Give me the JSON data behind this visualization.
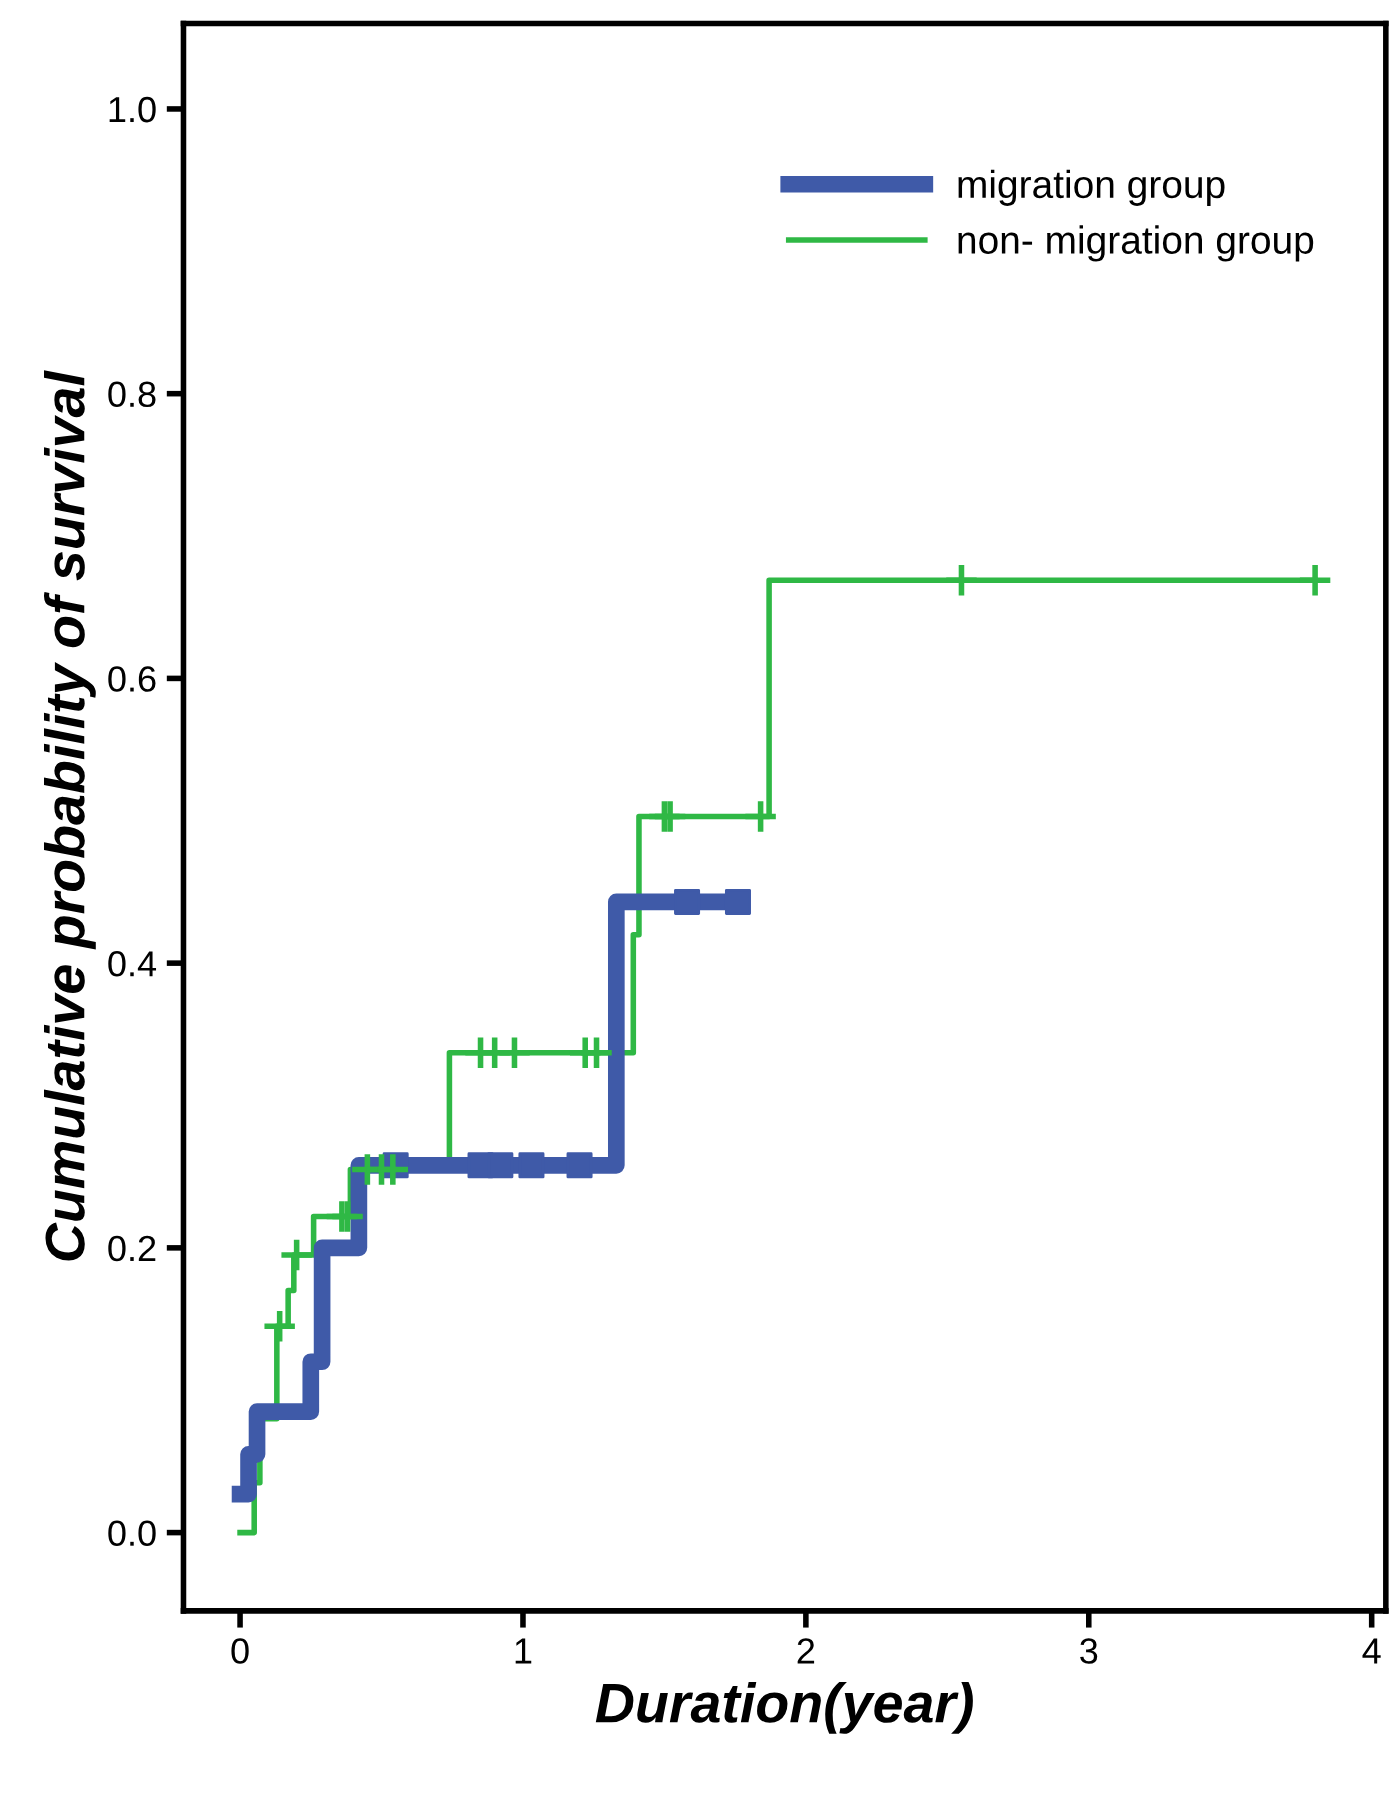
{
  "chart_data": {
    "type": "step",
    "xlabel": "Duration(year)",
    "ylabel": "Cumulative probability of survival",
    "xlim": [
      -0.2,
      4.05
    ],
    "ylim": [
      -0.055,
      1.06
    ],
    "xticks": [
      0,
      1,
      2,
      3,
      4
    ],
    "yticks": [
      {
        "value": 0,
        "label": "0.0"
      },
      {
        "value": 0.2,
        "label": "0.2"
      },
      {
        "value": 0.4,
        "label": "0.4"
      },
      {
        "value": 0.6,
        "label": "0.6"
      },
      {
        "value": 0.8,
        "label": "0.8"
      },
      {
        "value": 1,
        "label": "1.0"
      }
    ],
    "legend": "top right",
    "grid": false,
    "marker": "none",
    "series": [
      {
        "name": "migration group",
        "color": "#3f5aa8",
        "x": [
          0,
          0.03,
          0.06,
          0.25,
          0.29,
          0.42,
          1.33,
          1.77
        ],
        "values": [
          0.027,
          0.055,
          0.085,
          0.12,
          0.2,
          0.258,
          0.443,
          0.443
        ]
      },
      {
        "name": "non- migration group",
        "color": "#2fb845",
        "x": [
          0,
          0.05,
          0.07,
          0.13,
          0.17,
          0.19,
          0.26,
          0.39,
          0.74,
          1.39,
          1.41,
          1.87,
          3.8
        ],
        "values": [
          0,
          0.035,
          0.08,
          0.145,
          0.17,
          0.195,
          0.222,
          0.255,
          0.337,
          0.42,
          0.503,
          0.669,
          0.669
        ]
      },
      {
        "type": "scatter",
        "marker": "square",
        "color": "#3f5aa8",
        "x": [
          0.55,
          0.85,
          0.92,
          1.03,
          1.2,
          1.58,
          1.76
        ],
        "values": [
          0.258,
          0.258,
          0.258,
          0.258,
          0.258,
          0.443,
          0.443
        ]
      },
      {
        "type": "scatter",
        "marker": "cross",
        "color": "#2fb845",
        "x": [
          0.14,
          0.2,
          0.36,
          0.38,
          0.45,
          0.5,
          0.54,
          0.85,
          0.9,
          0.97,
          1.22,
          1.26,
          1.5,
          1.52,
          1.84,
          2.55,
          3.8
        ],
        "values": [
          0.145,
          0.195,
          0.222,
          0.222,
          0.255,
          0.255,
          0.255,
          0.337,
          0.337,
          0.337,
          0.337,
          0.337,
          0.503,
          0.503,
          0.503,
          0.669,
          0.669
        ]
      }
    ]
  }
}
